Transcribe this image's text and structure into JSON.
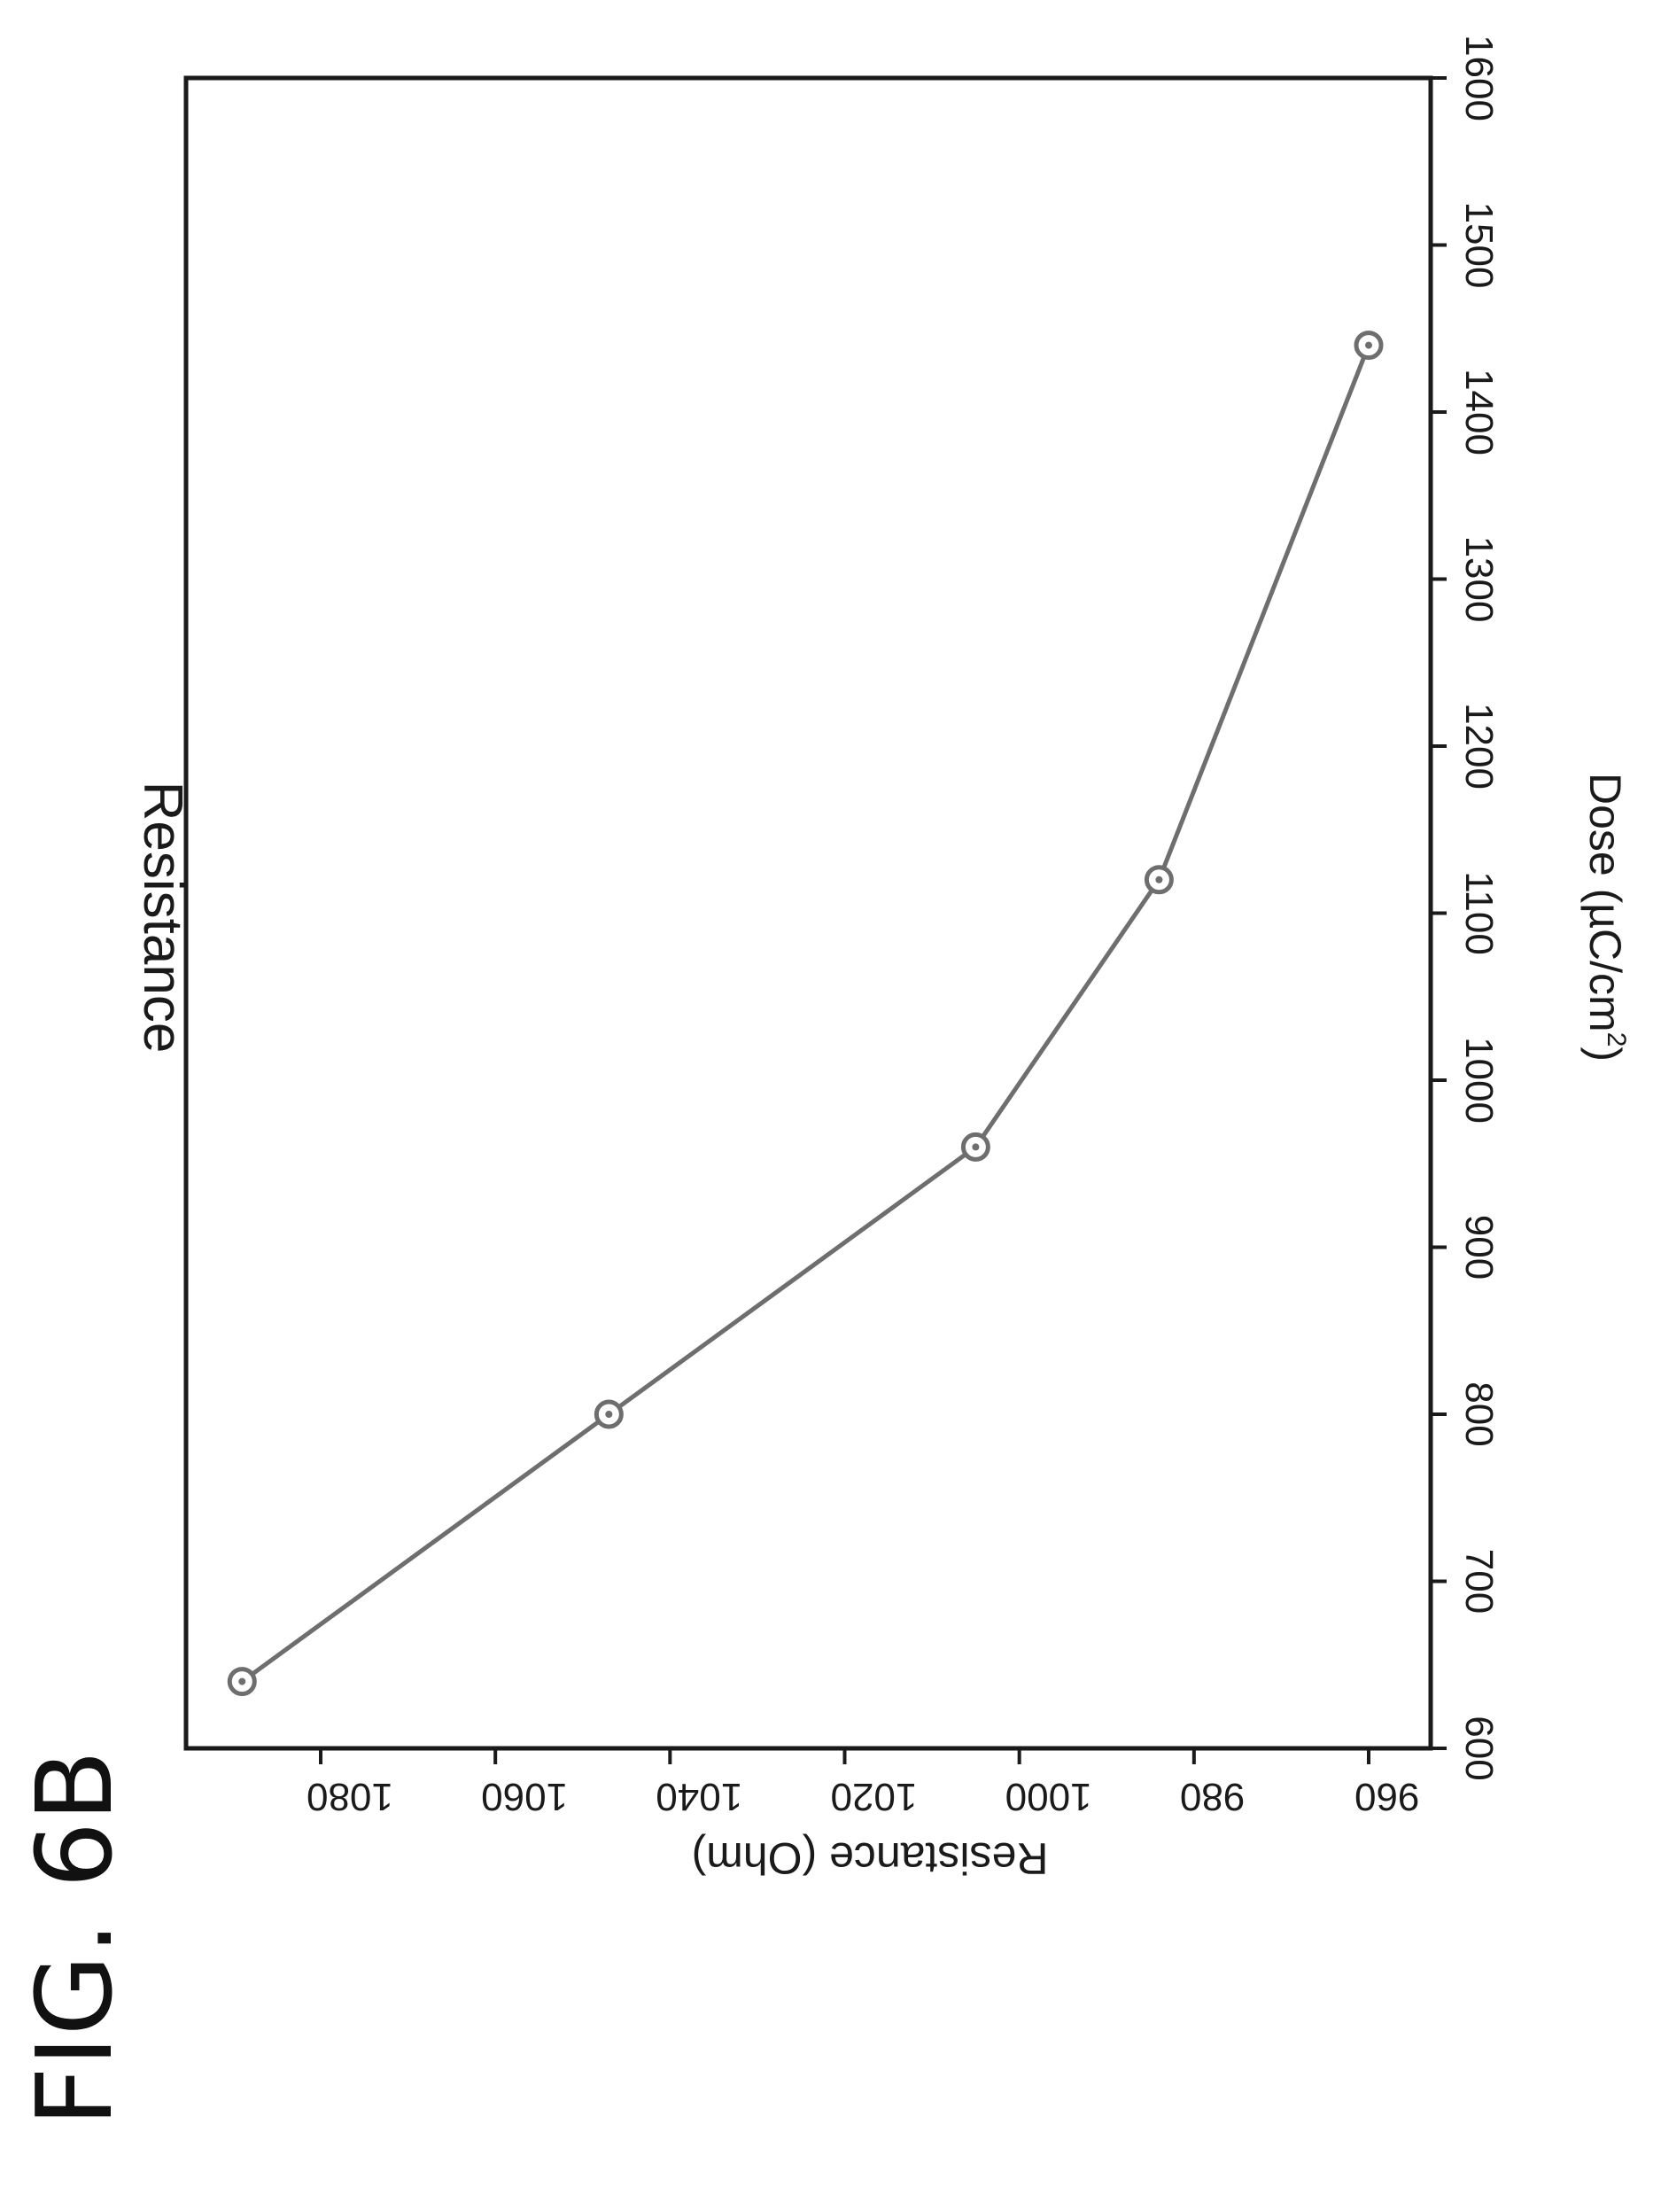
{
  "figure_label": "FIG. 6B",
  "chart_data": {
    "type": "line",
    "title": "Resistance",
    "xlabel_main": "Dose (µC/cm",
    "xlabel_sup": "2",
    "xlabel_close": ")",
    "ylabel": "Resistance (Ohm)",
    "xlim": [
      600,
      1600
    ],
    "ylim": [
      955,
      1092
    ],
    "x_ticks": [
      "600",
      "700",
      "800",
      "900",
      "1000",
      "1100",
      "1200",
      "1300",
      "1400",
      "1500",
      "1600"
    ],
    "y_ticks": [
      "960",
      "980",
      "1000",
      "1020",
      "1040",
      "1060",
      "1080"
    ],
    "series": [
      {
        "x": [
          640,
          800,
          960,
          1120,
          1440
        ],
        "y": [
          1089,
          1047,
          1005,
          984,
          960
        ],
        "color": "#6e6e6e",
        "marker": "circle-dot"
      }
    ],
    "grid": false,
    "orientation": "rotated 90° clockwise on page"
  }
}
